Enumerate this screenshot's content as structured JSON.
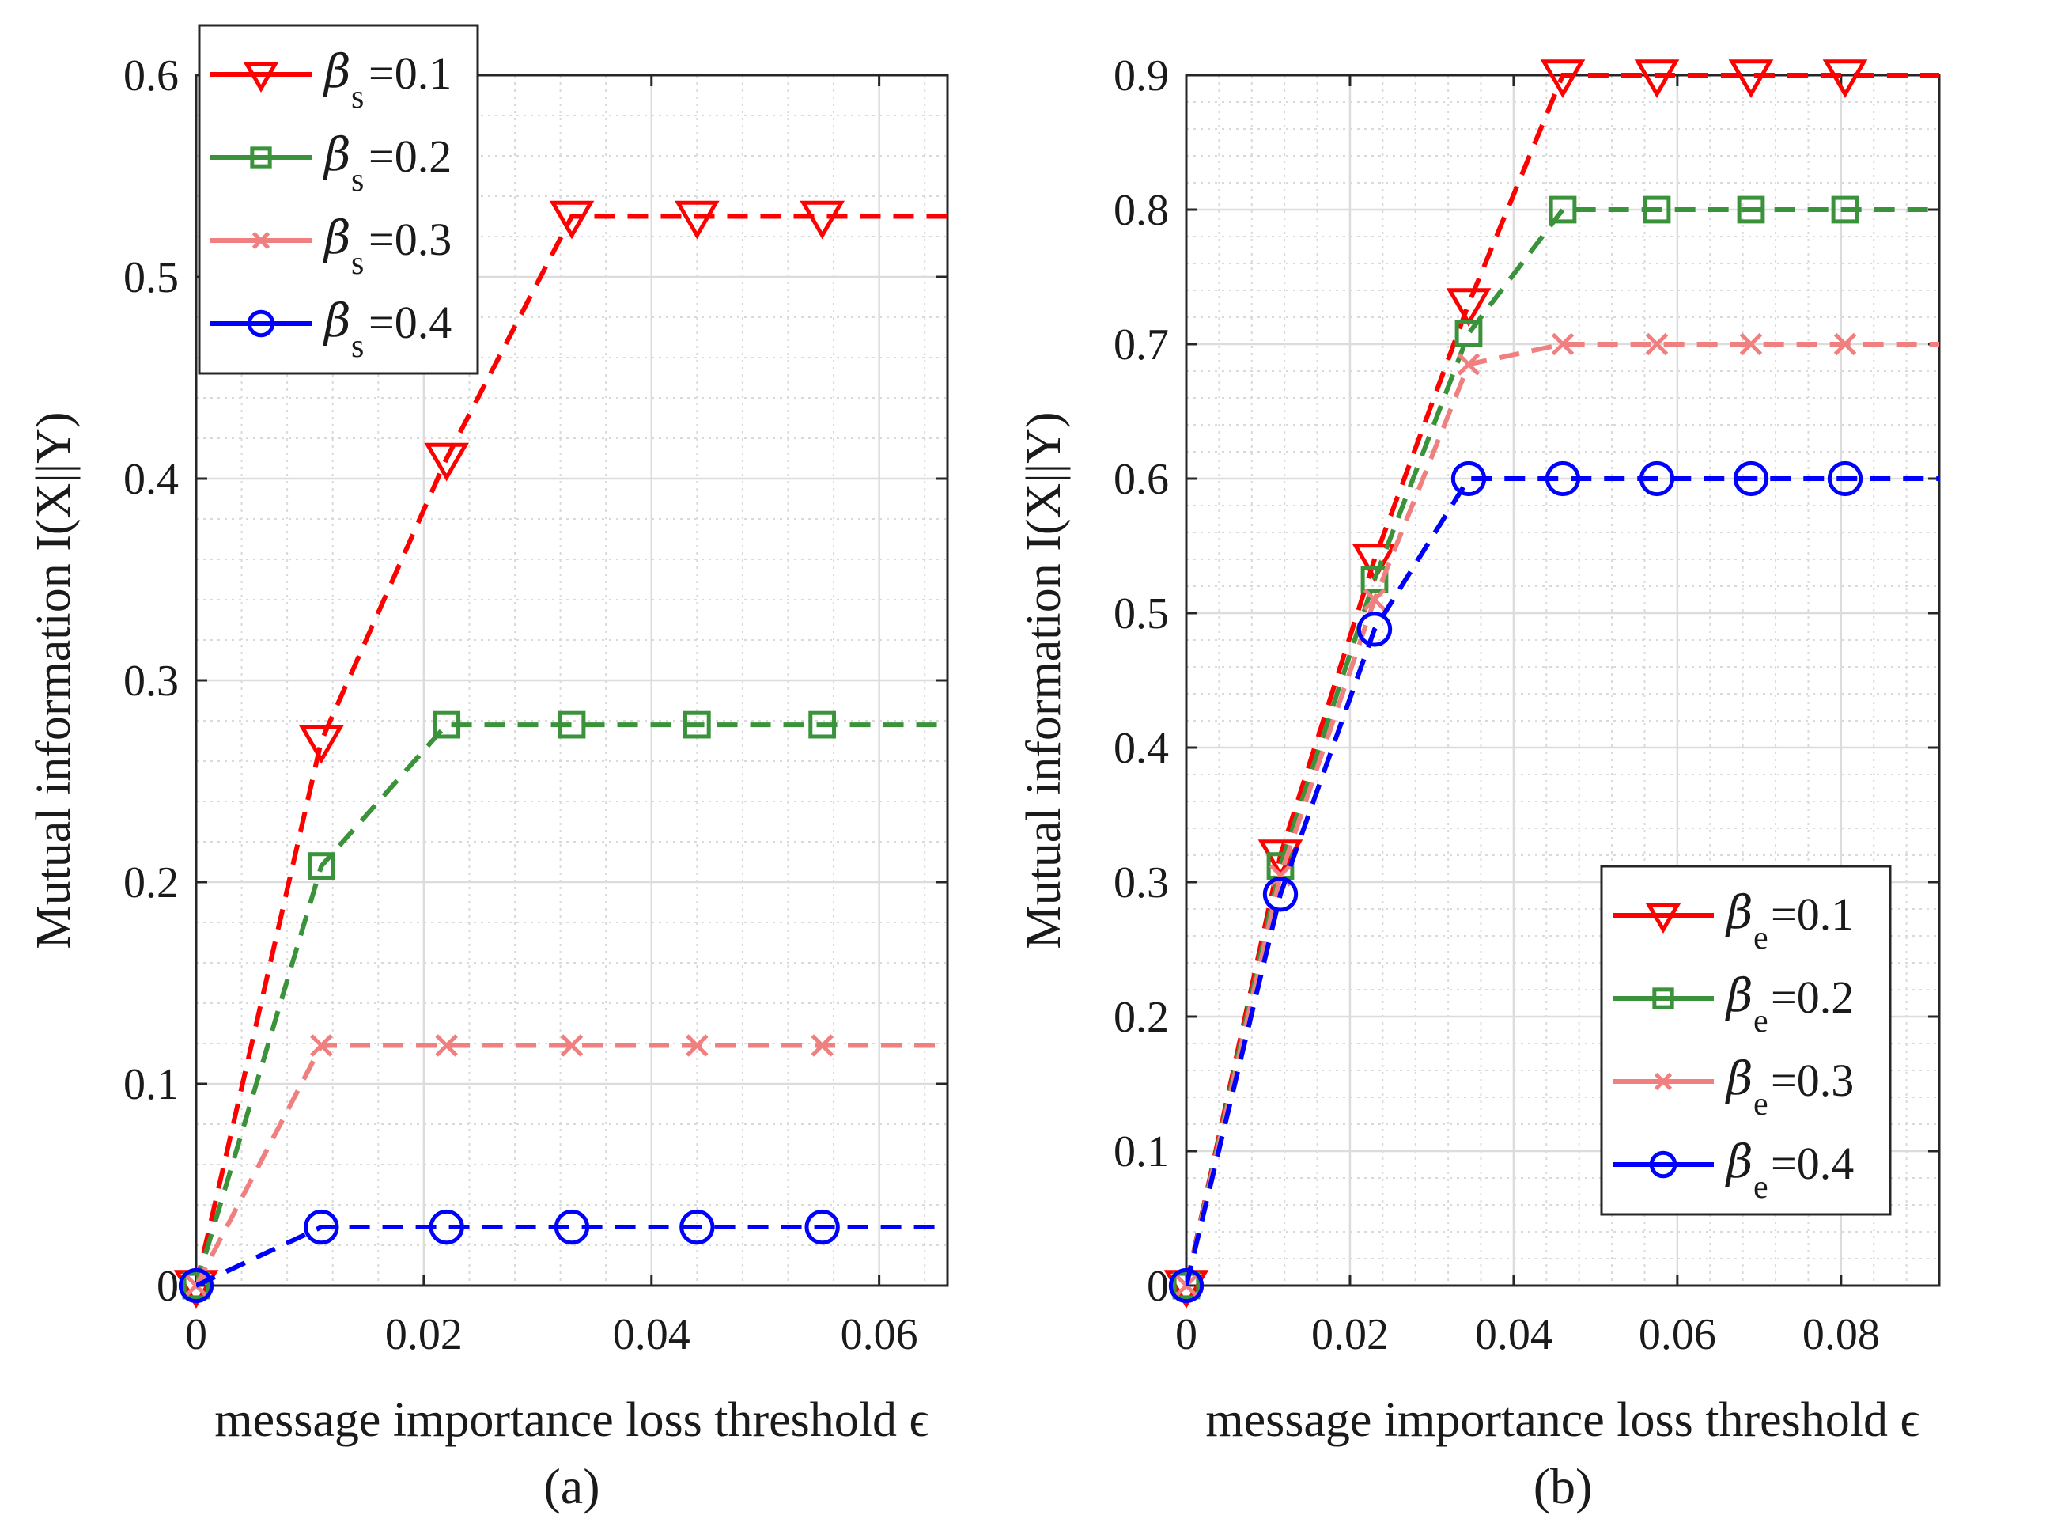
{
  "chart_data": [
    {
      "type": "line",
      "caption": "(a)",
      "xlabel": "message importance loss threshold ϵ",
      "ylabel": "Mutual information I(X||Y)",
      "xlim": [
        0,
        0.066
      ],
      "ylim": [
        0,
        0.6
      ],
      "xticks": [
        0,
        0.02,
        0.04,
        0.06
      ],
      "xtick_labels": [
        "0",
        "0.02",
        "0.04",
        "0.06"
      ],
      "yticks": [
        0,
        0.1,
        0.2,
        0.3,
        0.4,
        0.5,
        0.6
      ],
      "ytick_labels": [
        "0",
        "0.1",
        "0.2",
        "0.3",
        "0.4",
        "0.5",
        "0.6"
      ],
      "grid": true,
      "legend_position": "top-left",
      "legend_symbol": "β",
      "legend_subscript": "s",
      "series": [
        {
          "name": "=0.1",
          "color": "#ff0000",
          "marker": "triangle-down",
          "x": [
            0,
            0.011,
            0.022,
            0.033,
            0.044,
            0.055,
            0.066
          ],
          "y": [
            0,
            0.27,
            0.41,
            0.53,
            0.53,
            0.53,
            0.53
          ]
        },
        {
          "name": "=0.2",
          "color": "#3a923a",
          "marker": "square",
          "x": [
            0,
            0.011,
            0.022,
            0.033,
            0.044,
            0.055,
            0.066
          ],
          "y": [
            0,
            0.208,
            0.278,
            0.278,
            0.278,
            0.278,
            0.278
          ]
        },
        {
          "name": "=0.3",
          "color": "#f08080",
          "marker": "x",
          "x": [
            0,
            0.011,
            0.022,
            0.033,
            0.044,
            0.055,
            0.066
          ],
          "y": [
            0,
            0.119,
            0.119,
            0.119,
            0.119,
            0.119,
            0.119
          ]
        },
        {
          "name": "=0.4",
          "color": "#0000ff",
          "marker": "circle",
          "x": [
            0,
            0.011,
            0.022,
            0.033,
            0.044,
            0.055,
            0.066
          ],
          "y": [
            0,
            0.029,
            0.029,
            0.029,
            0.029,
            0.029,
            0.029
          ]
        }
      ]
    },
    {
      "type": "line",
      "caption": "(b)",
      "xlabel": "message importance loss threshold ϵ",
      "ylabel": "Mutual information I(X||Y)",
      "xlim": [
        0,
        0.092
      ],
      "ylim": [
        0,
        0.9
      ],
      "xticks": [
        0,
        0.02,
        0.04,
        0.06,
        0.08
      ],
      "xtick_labels": [
        "0",
        "0.02",
        "0.04",
        "0.06",
        "0.08"
      ],
      "yticks": [
        0,
        0.1,
        0.2,
        0.3,
        0.4,
        0.5,
        0.6,
        0.7,
        0.8,
        0.9
      ],
      "ytick_labels": [
        "0",
        "0.1",
        "0.2",
        "0.3",
        "0.4",
        "0.5",
        "0.6",
        "0.7",
        "0.8",
        "0.9"
      ],
      "grid": true,
      "legend_position": "bottom-right",
      "legend_symbol": "β",
      "legend_subscript": "e",
      "series": [
        {
          "name": "=0.1",
          "color": "#ff0000",
          "marker": "triangle-down",
          "x": [
            0,
            0.0115,
            0.023,
            0.0345,
            0.046,
            0.0575,
            0.069,
            0.0805,
            0.092
          ],
          "y": [
            0,
            0.32,
            0.54,
            0.73,
            0.9,
            0.9,
            0.9,
            0.9,
            0.9
          ]
        },
        {
          "name": "=0.2",
          "color": "#3a923a",
          "marker": "square",
          "x": [
            0,
            0.0115,
            0.023,
            0.0345,
            0.046,
            0.0575,
            0.069,
            0.0805,
            0.092
          ],
          "y": [
            0,
            0.312,
            0.525,
            0.708,
            0.8,
            0.8,
            0.8,
            0.8,
            0.8
          ]
        },
        {
          "name": "=0.3",
          "color": "#f08080",
          "marker": "x",
          "x": [
            0,
            0.0115,
            0.023,
            0.0345,
            0.046,
            0.0575,
            0.069,
            0.0805,
            0.092
          ],
          "y": [
            0,
            0.305,
            0.51,
            0.685,
            0.7,
            0.7,
            0.7,
            0.7,
            0.7
          ]
        },
        {
          "name": "=0.4",
          "color": "#0000ff",
          "marker": "circle",
          "x": [
            0,
            0.0115,
            0.023,
            0.0345,
            0.046,
            0.0575,
            0.069,
            0.0805,
            0.092
          ],
          "y": [
            0,
            0.291,
            0.488,
            0.6,
            0.6,
            0.6,
            0.6,
            0.6,
            0.6
          ]
        }
      ]
    }
  ]
}
